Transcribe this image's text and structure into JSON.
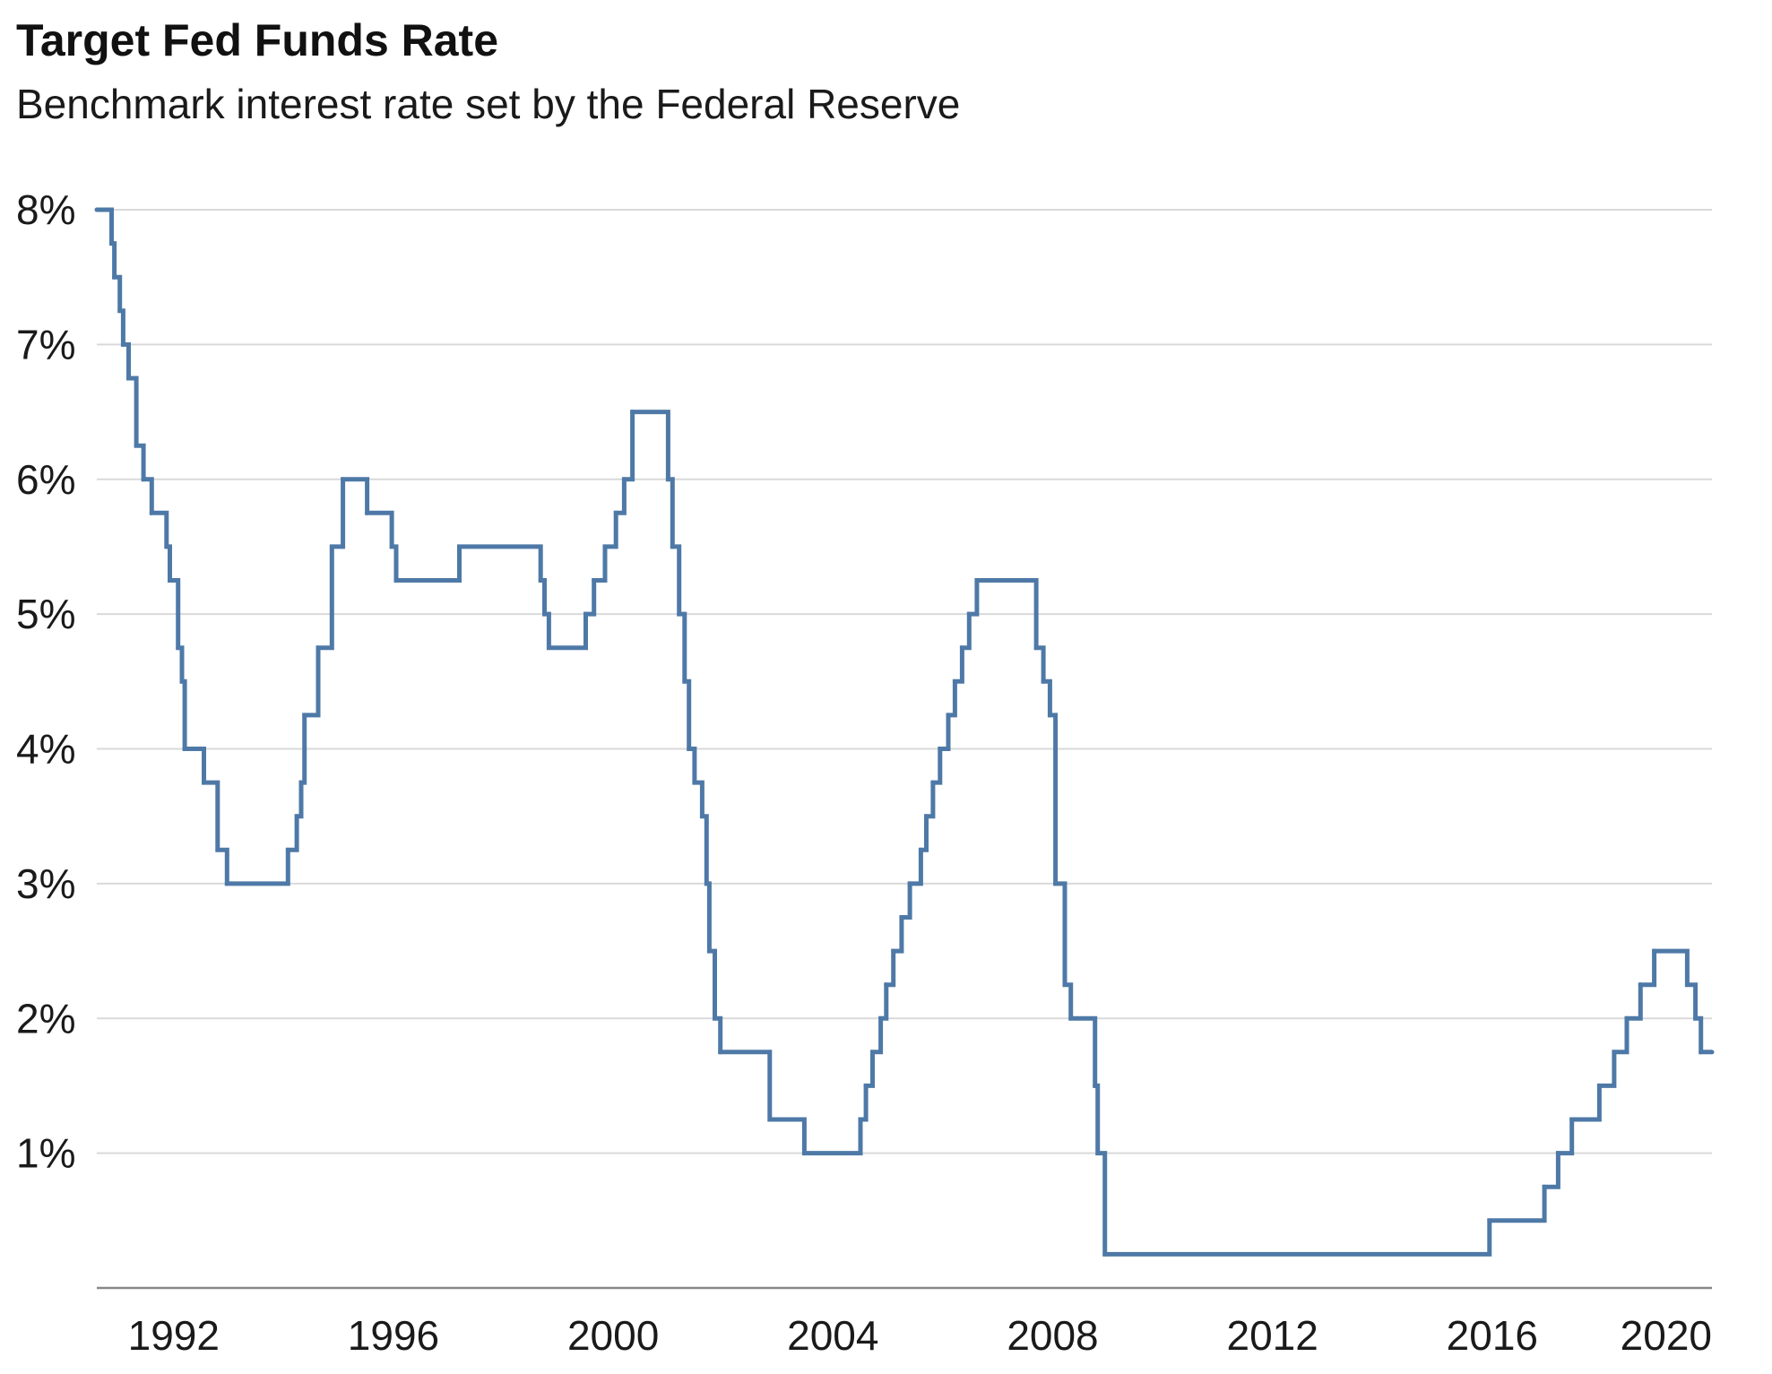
{
  "chart_data": {
    "type": "line",
    "line_shape": "step",
    "title": "Target Fed Funds Rate",
    "subtitle": "Benchmark interest rate set by the Federal Reserve",
    "xlabel": "",
    "ylabel": "",
    "xlim": [
      1990.6,
      2020.0
    ],
    "ylim": [
      0,
      8
    ],
    "y_ticks": [
      1,
      2,
      3,
      4,
      5,
      6,
      7,
      8
    ],
    "y_tick_labels": [
      "1%",
      "2%",
      "3%",
      "4%",
      "5%",
      "6%",
      "7%",
      "8%"
    ],
    "x_ticks": [
      1992,
      1996,
      2000,
      2004,
      2008,
      2012,
      2016,
      2020
    ],
    "x_tick_labels": [
      "1992",
      "1996",
      "2000",
      "2004",
      "2008",
      "2012",
      "2016",
      "2020"
    ],
    "grid": "horizontal",
    "legend": "none",
    "colors": {
      "line": "#4e79a7",
      "grid": "#d9d9d9",
      "axis": "#888888"
    },
    "series": [
      {
        "values": [
          [
            1990.6,
            8.0
          ],
          [
            1990.87,
            7.75
          ],
          [
            1990.92,
            7.5
          ],
          [
            1991.02,
            7.25
          ],
          [
            1991.08,
            7.0
          ],
          [
            1991.18,
            6.75
          ],
          [
            1991.32,
            6.25
          ],
          [
            1991.45,
            6.0
          ],
          [
            1991.6,
            5.75
          ],
          [
            1991.87,
            5.5
          ],
          [
            1991.93,
            5.25
          ],
          [
            1992.08,
            4.75
          ],
          [
            1992.15,
            4.5
          ],
          [
            1992.2,
            4.0
          ],
          [
            1992.55,
            3.75
          ],
          [
            1992.8,
            3.25
          ],
          [
            1992.97,
            3.0
          ],
          [
            1994.08,
            3.25
          ],
          [
            1994.24,
            3.5
          ],
          [
            1994.32,
            3.75
          ],
          [
            1994.38,
            4.25
          ],
          [
            1994.63,
            4.75
          ],
          [
            1994.88,
            5.5
          ],
          [
            1995.08,
            6.0
          ],
          [
            1995.52,
            5.75
          ],
          [
            1995.97,
            5.5
          ],
          [
            1996.05,
            5.25
          ],
          [
            1997.2,
            5.5
          ],
          [
            1998.68,
            5.25
          ],
          [
            1998.75,
            5.0
          ],
          [
            1998.83,
            4.75
          ],
          [
            1999.5,
            5.0
          ],
          [
            1999.65,
            5.25
          ],
          [
            1999.85,
            5.5
          ],
          [
            2000.05,
            5.75
          ],
          [
            2000.2,
            6.0
          ],
          [
            2000.35,
            6.5
          ],
          [
            2001.0,
            6.0
          ],
          [
            2001.08,
            5.5
          ],
          [
            2001.2,
            5.0
          ],
          [
            2001.3,
            4.5
          ],
          [
            2001.38,
            4.0
          ],
          [
            2001.48,
            3.75
          ],
          [
            2001.62,
            3.5
          ],
          [
            2001.7,
            3.0
          ],
          [
            2001.75,
            2.5
          ],
          [
            2001.85,
            2.0
          ],
          [
            2001.95,
            1.75
          ],
          [
            2002.85,
            1.25
          ],
          [
            2003.48,
            1.0
          ],
          [
            2004.5,
            1.25
          ],
          [
            2004.6,
            1.5
          ],
          [
            2004.72,
            1.75
          ],
          [
            2004.87,
            2.0
          ],
          [
            2004.97,
            2.25
          ],
          [
            2005.1,
            2.5
          ],
          [
            2005.25,
            2.75
          ],
          [
            2005.4,
            3.0
          ],
          [
            2005.6,
            3.25
          ],
          [
            2005.7,
            3.5
          ],
          [
            2005.82,
            3.75
          ],
          [
            2005.95,
            4.0
          ],
          [
            2006.1,
            4.25
          ],
          [
            2006.22,
            4.5
          ],
          [
            2006.35,
            4.75
          ],
          [
            2006.48,
            5.0
          ],
          [
            2006.62,
            5.25
          ],
          [
            2007.7,
            4.75
          ],
          [
            2007.83,
            4.5
          ],
          [
            2007.95,
            4.25
          ],
          [
            2008.05,
            3.0
          ],
          [
            2008.22,
            2.25
          ],
          [
            2008.33,
            2.0
          ],
          [
            2008.77,
            1.5
          ],
          [
            2008.82,
            1.0
          ],
          [
            2008.95,
            0.25
          ],
          [
            2015.95,
            0.5
          ],
          [
            2016.95,
            0.75
          ],
          [
            2017.2,
            1.0
          ],
          [
            2017.45,
            1.25
          ],
          [
            2017.95,
            1.5
          ],
          [
            2018.22,
            1.75
          ],
          [
            2018.45,
            2.0
          ],
          [
            2018.7,
            2.25
          ],
          [
            2018.95,
            2.5
          ],
          [
            2019.55,
            2.25
          ],
          [
            2019.7,
            2.0
          ],
          [
            2019.8,
            1.75
          ],
          [
            2020.0,
            1.75
          ]
        ]
      }
    ]
  }
}
